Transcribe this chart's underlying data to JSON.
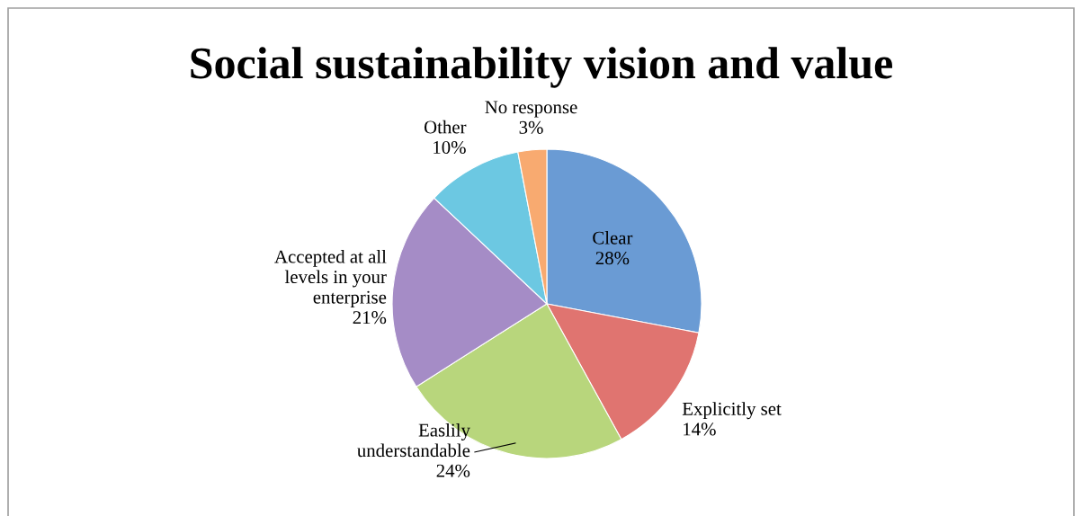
{
  "chart_data": {
    "type": "pie",
    "title": "Social sustainability vision and value",
    "categories": [
      "Clear",
      "Explicitly set",
      "Easlily\nunderstandable",
      "Accepted at all\nlevels in your\nenterprise",
      "Other",
      "No response"
    ],
    "values": [
      28,
      14,
      24,
      21,
      10,
      3
    ],
    "value_labels": [
      "28%",
      "14%",
      "24%",
      "21%",
      "10%",
      "3%"
    ],
    "colors": [
      "#6a9bd4",
      "#e07470",
      "#b8d67c",
      "#a58cc6",
      "#6cc8e2",
      "#f8aa70"
    ],
    "legend": false
  }
}
